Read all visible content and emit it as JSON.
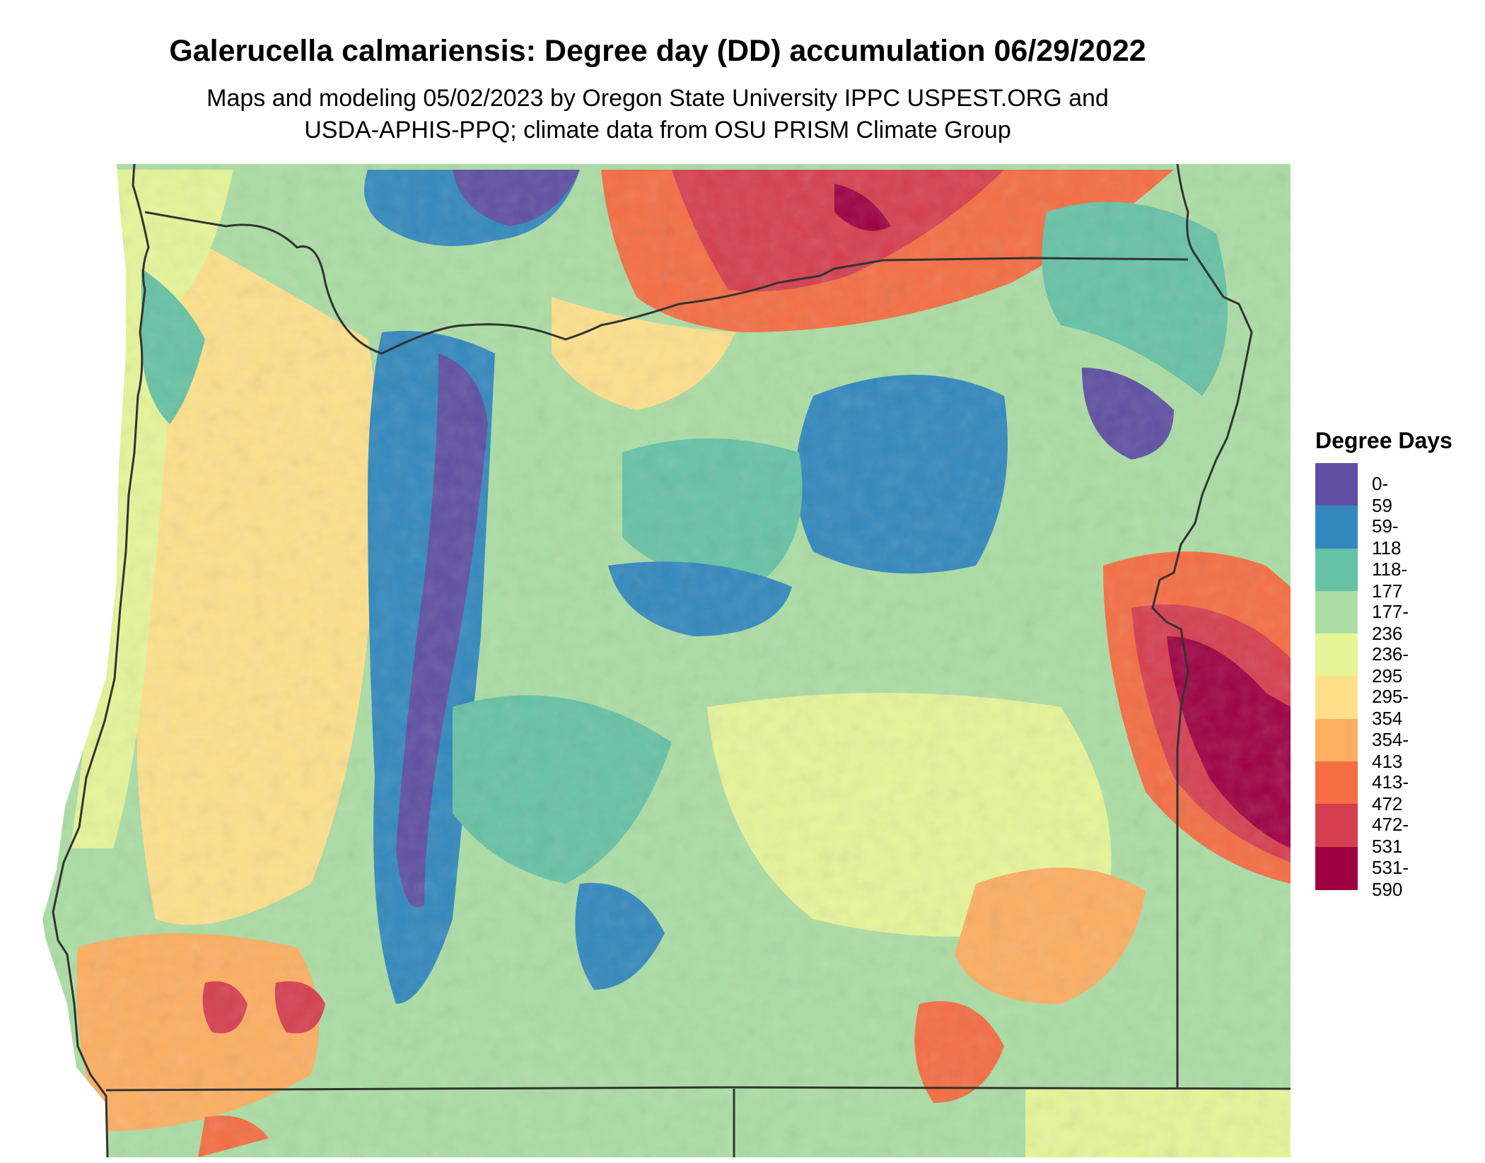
{
  "title": "Galerucella calmariensis: Degree day (DD) accumulation 06/29/2022",
  "subtitle_line1": "Maps and modeling 05/02/2023 by Oregon State University IPPC USPEST.ORG and",
  "subtitle_line2": "USDA-APHIS-PPQ; climate data from OSU PRISM Climate Group",
  "legend": {
    "title": "Degree Days",
    "classes": [
      {
        "label": "0-59",
        "color": "#5e4fa2"
      },
      {
        "label": "59-118",
        "color": "#3288bd"
      },
      {
        "label": "118-177",
        "color": "#66c2a5"
      },
      {
        "label": "177-236",
        "color": "#abdda4"
      },
      {
        "label": "236-295",
        "color": "#e6f598"
      },
      {
        "label": "295-354",
        "color": "#fee08b"
      },
      {
        "label": "354-413",
        "color": "#fdae61"
      },
      {
        "label": "413-472",
        "color": "#f46d43"
      },
      {
        "label": "472-531",
        "color": "#d53e4f"
      },
      {
        "label": "531-590",
        "color": "#9e0142"
      }
    ]
  },
  "map": {
    "region": "Oregon",
    "variable": "degree day accumulation",
    "boundary_color": "#333333"
  }
}
